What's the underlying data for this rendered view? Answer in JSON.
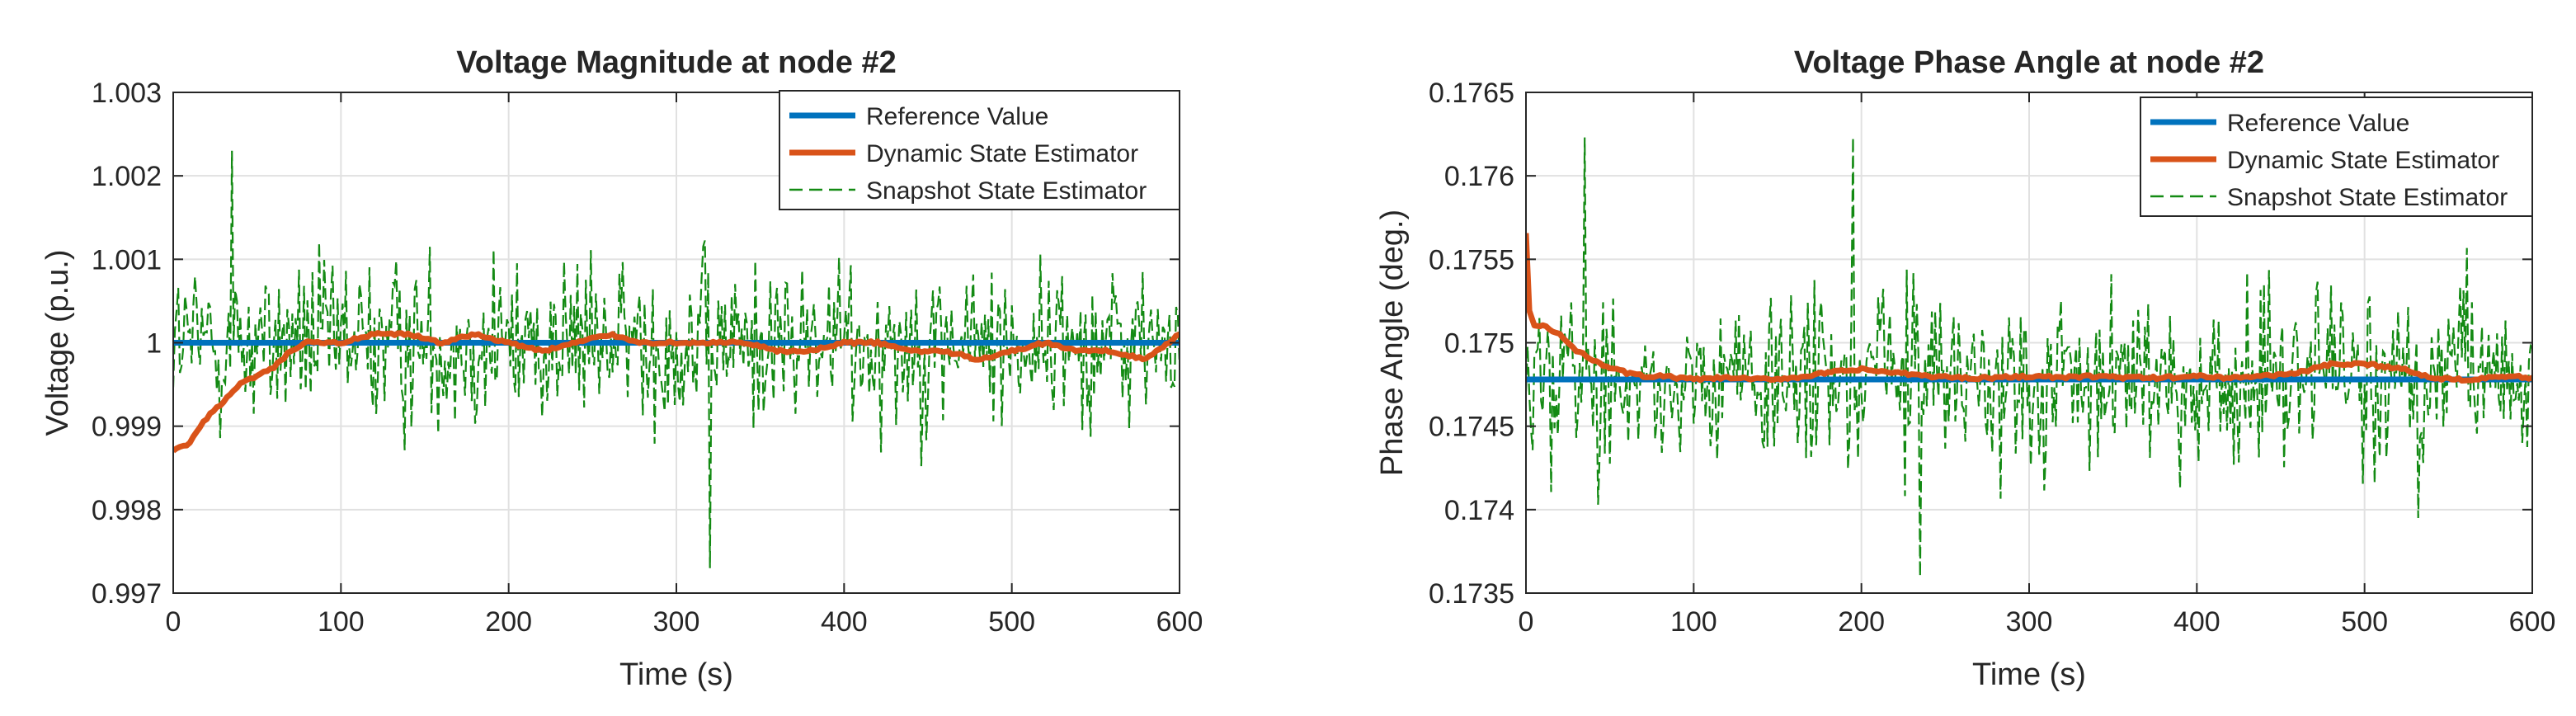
{
  "figure": {
    "description_free": true
  },
  "colors": {
    "reference": "#0072BD",
    "dynamic": "#D95319",
    "snapshot": "#138a13",
    "grid": "#e1e1e1",
    "axis": "#262626"
  },
  "chart_data": [
    {
      "type": "line",
      "title": "Voltage Magnitude at node #2",
      "xlabel": "Time (s)",
      "ylabel": "Voltage (p.u.)",
      "xlim": [
        0,
        600
      ],
      "ylim": [
        0.997,
        1.003
      ],
      "xticks": [
        0,
        100,
        200,
        300,
        400,
        500,
        600
      ],
      "xtick_labels": [
        "0",
        "100",
        "200",
        "300",
        "400",
        "500",
        "600"
      ],
      "yticks": [
        0.997,
        0.998,
        0.999,
        1.0,
        1.001,
        1.002,
        1.003
      ],
      "ytick_labels": [
        "0.997",
        "0.998",
        "0.999",
        "1",
        "1.001",
        "1.002",
        "1.003"
      ],
      "grid": true,
      "legend_position": "top-right",
      "legend": [
        "Reference Value",
        "Dynamic State Estimator",
        "Snapshot State Estimator"
      ],
      "series": [
        {
          "name": "Reference Value",
          "style": "solid",
          "x": [
            0,
            600
          ],
          "y": [
            1.0,
            1.0
          ]
        },
        {
          "name": "Dynamic State Estimator",
          "style": "solid",
          "x": [
            0,
            10,
            20,
            30,
            40,
            50,
            60,
            70,
            80,
            90,
            100,
            120,
            140,
            160,
            180,
            200,
            220,
            240,
            260,
            280,
            300,
            320,
            340,
            360,
            380,
            400,
            420,
            440,
            460,
            480,
            500,
            520,
            540,
            560,
            580,
            600
          ],
          "y": [
            0.9987,
            0.9988,
            0.9991,
            0.9993,
            0.9995,
            0.9996,
            0.9997,
            0.9999,
            1.0,
            1.0,
            1.0,
            1.0001,
            1.0001,
            1.0,
            1.0001,
            1.0,
            0.9999,
            1.0,
            1.0001,
            1.0,
            1.0,
            1.0,
            1.0,
            0.9999,
            0.9999,
            1.0,
            1.0,
            0.9999,
            0.9999,
            0.9998,
            0.9999,
            1.0,
            0.9999,
            0.9999,
            0.9998,
            1.0001
          ]
        },
        {
          "name": "Snapshot State Estimator",
          "style": "dashed",
          "samples": 600,
          "mean": 1.0,
          "std": 0.0007,
          "y_range": [
            0.9973,
            1.0023
          ]
        }
      ]
    },
    {
      "type": "line",
      "title": "Voltage Phase Angle at node #2",
      "xlabel": "Time (s)",
      "ylabel": "Phase Angle (deg.)",
      "xlim": [
        0,
        600
      ],
      "ylim": [
        0.1735,
        0.1765
      ],
      "xticks": [
        0,
        100,
        200,
        300,
        400,
        500,
        600
      ],
      "xtick_labels": [
        "0",
        "100",
        "200",
        "300",
        "400",
        "500",
        "600"
      ],
      "yticks": [
        0.1735,
        0.174,
        0.1745,
        0.175,
        0.1755,
        0.176,
        0.1765
      ],
      "ytick_labels": [
        "0.1735",
        "0.174",
        "0.1745",
        "0.175",
        "0.1755",
        "0.176",
        "0.1765"
      ],
      "grid": true,
      "legend_position": "top-right",
      "legend": [
        "Reference Value",
        "Dynamic State Estimator",
        "Snapshot State Estimator"
      ],
      "series": [
        {
          "name": "Reference Value",
          "style": "solid",
          "x": [
            0,
            600
          ],
          "y": [
            0.17478,
            0.17478
          ]
        },
        {
          "name": "Dynamic State Estimator",
          "style": "solid",
          "x": [
            0,
            2,
            5,
            10,
            20,
            30,
            40,
            50,
            60,
            70,
            80,
            100,
            120,
            140,
            160,
            180,
            200,
            220,
            240,
            260,
            280,
            300,
            320,
            340,
            360,
            380,
            400,
            420,
            440,
            460,
            480,
            500,
            520,
            540,
            560,
            580,
            600
          ],
          "y": [
            0.17565,
            0.1752,
            0.1751,
            0.1751,
            0.17505,
            0.17495,
            0.1749,
            0.17485,
            0.17482,
            0.1748,
            0.1748,
            0.17478,
            0.17479,
            0.17478,
            0.17479,
            0.17482,
            0.17484,
            0.17482,
            0.1748,
            0.17479,
            0.17479,
            0.1748,
            0.17479,
            0.1748,
            0.17479,
            0.17479,
            0.1748,
            0.17479,
            0.1748,
            0.17482,
            0.17487,
            0.17487,
            0.17485,
            0.17479,
            0.17478,
            0.1748,
            0.17479
          ]
        },
        {
          "name": "Snapshot State Estimator",
          "style": "dashed",
          "samples": 600,
          "mean": 0.17478,
          "std": 0.00035,
          "y_range": [
            0.1736,
            0.17623
          ]
        }
      ]
    }
  ]
}
